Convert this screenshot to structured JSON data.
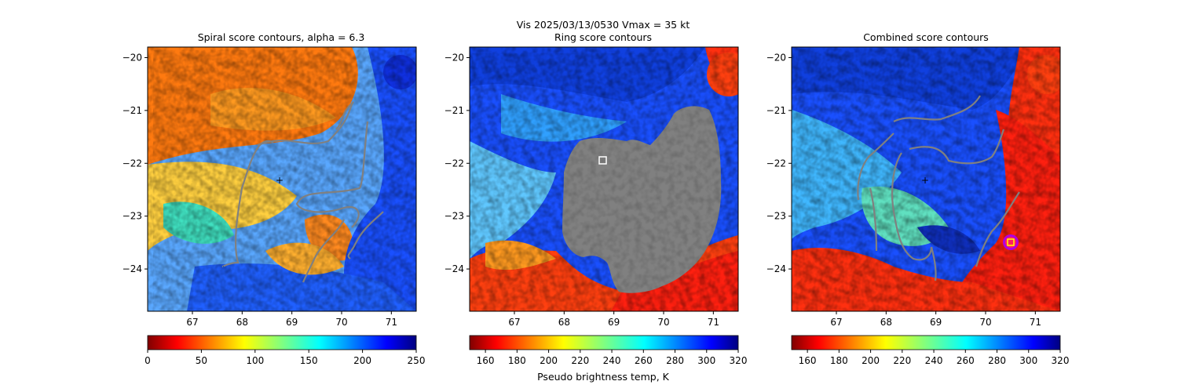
{
  "suptitle": "Vis  2025/03/13/0530    Vmax = 35 kt",
  "chart_data": [
    {
      "type": "heatmap",
      "title": "Spiral score contours, alpha =  6.3",
      "xlim": [
        66.1,
        71.5
      ],
      "ylim": [
        -24.8,
        -19.8
      ],
      "x_ticks": [
        "67",
        "68",
        "69",
        "70",
        "71"
      ],
      "y_ticks": [
        "−20",
        "−21",
        "−22",
        "−23",
        "−24"
      ],
      "x_tick_values": [
        67,
        68,
        69,
        70,
        71
      ],
      "y_tick_values": [
        -20,
        -21,
        -22,
        -23,
        -24
      ],
      "colormap": "jet_r",
      "colorbar": {
        "range": [
          0,
          250
        ],
        "tick_values": [
          0,
          50,
          100,
          150,
          200,
          250
        ],
        "ticks": [
          "0",
          "50",
          "100",
          "150",
          "200",
          "250"
        ],
        "label": ""
      },
      "contour_color": "#808080",
      "marker": {
        "kind": "plus",
        "color": "#ffffff",
        "x": 68.8,
        "y": -22.3
      }
    },
    {
      "type": "heatmap",
      "title": "Ring score contours",
      "xlim": [
        66.1,
        71.5
      ],
      "ylim": [
        -24.8,
        -19.8
      ],
      "x_ticks": [
        "67",
        "68",
        "69",
        "70",
        "71"
      ],
      "y_ticks": [
        "−20",
        "−21",
        "−22",
        "−23",
        "−24"
      ],
      "x_tick_values": [
        67,
        68,
        69,
        70,
        71
      ],
      "y_tick_values": [
        -20,
        -21,
        -22,
        -23,
        -24
      ],
      "colormap": "jet_r",
      "colorbar": {
        "range": [
          150,
          320
        ],
        "tick_values": [
          160,
          180,
          200,
          220,
          240,
          260,
          280,
          300,
          320
        ],
        "ticks": [
          "160",
          "180",
          "200",
          "220",
          "240",
          "260",
          "280",
          "300",
          "320"
        ],
        "label": "Pseudo brightness temp, K"
      },
      "masked_region_color": "#808080",
      "marker": {
        "kind": "square",
        "color": "#ffffff",
        "x": 68.8,
        "y": -21.95
      }
    },
    {
      "type": "heatmap",
      "title": "Combined score contours",
      "xlim": [
        66.1,
        71.5
      ],
      "ylim": [
        -24.8,
        -19.8
      ],
      "x_ticks": [
        "67",
        "68",
        "69",
        "70",
        "71"
      ],
      "y_ticks": [
        "−20",
        "−21",
        "−22",
        "−23",
        "−24"
      ],
      "x_tick_values": [
        67,
        68,
        69,
        70,
        71
      ],
      "y_tick_values": [
        -20,
        -21,
        -22,
        -23,
        -24
      ],
      "colormap": "jet_r",
      "colorbar": {
        "range": [
          150,
          320
        ],
        "tick_values": [
          160,
          180,
          200,
          220,
          240,
          260,
          280,
          300,
          320
        ],
        "ticks": [
          "160",
          "180",
          "200",
          "220",
          "240",
          "260",
          "280",
          "300",
          "320"
        ],
        "label": ""
      },
      "contour_color": "#808080",
      "marker": {
        "kind": "plus",
        "color": "#ffffff",
        "x": 68.8,
        "y": -22.3
      },
      "marker2": {
        "kind": "square-in-circle",
        "color": "#ffff00",
        "ring_color": "#cc00ff",
        "x": 70.55,
        "y": -23.5
      }
    }
  ]
}
